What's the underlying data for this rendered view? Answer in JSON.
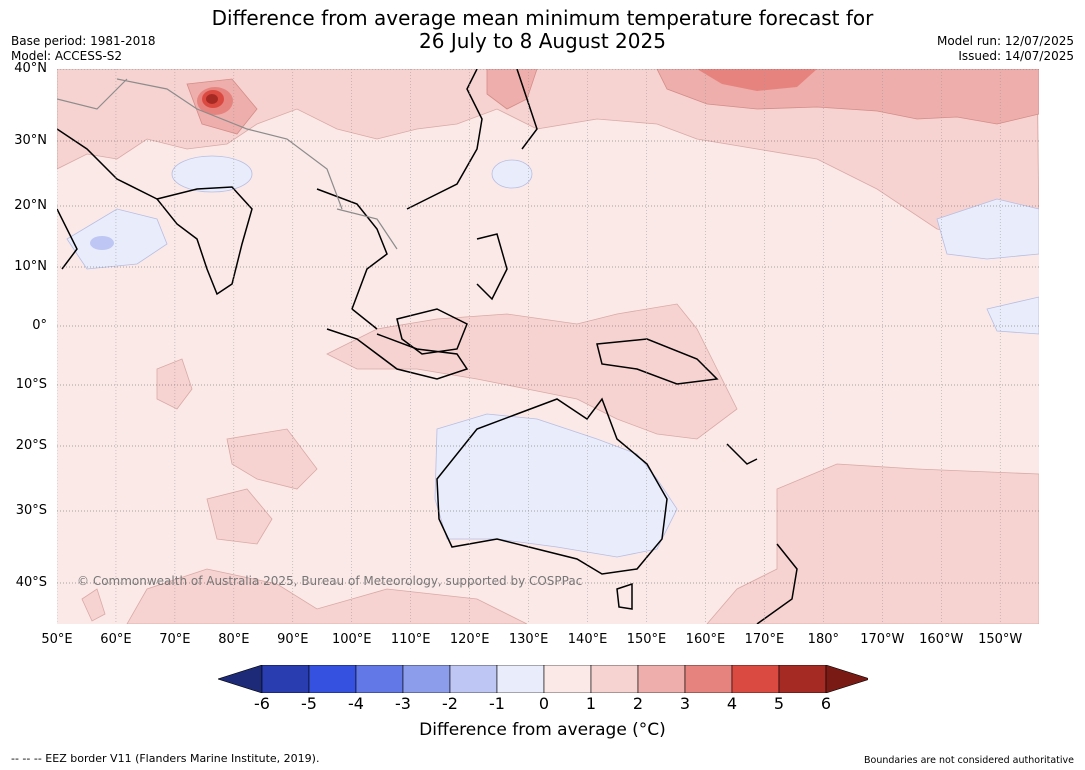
{
  "header": {
    "title_line1": "Difference from average mean minimum temperature forecast for",
    "title_line2": "26 July to 8 August 2025",
    "base_period": "Base period: 1981-2018",
    "model": "Model: ACCESS-S2",
    "model_run": "Model run: 12/07/2025",
    "issued": "Issued: 14/07/2025"
  },
  "map": {
    "lat_labels": [
      "40°N",
      "30°N",
      "20°N",
      "10°N",
      "0°",
      "10°S",
      "20°S",
      "30°S",
      "40°S"
    ],
    "lon_labels": [
      "50°E",
      "60°E",
      "70°E",
      "80°E",
      "90°E",
      "100°E",
      "110°E",
      "120°E",
      "130°E",
      "140°E",
      "150°E",
      "160°E",
      "170°E",
      "180°",
      "170°W",
      "160°W",
      "150°W"
    ],
    "copyright": "© Commonwealth of Australia 2025, Bureau of Meteorology, supported by COSPPac",
    "colors": {
      "ocean_base": "#fbe9e7",
      "land_outline": "#000000",
      "border": "#8c8c8c",
      "grid": "#555555"
    }
  },
  "colorbar": {
    "ticks": [
      "-6",
      "-5",
      "-4",
      "-3",
      "-2",
      "-1",
      "0",
      "1",
      "2",
      "3",
      "4",
      "5",
      "6"
    ],
    "colors": [
      "#1d2a78",
      "#2a3db0",
      "#3551e0",
      "#6178e6",
      "#8c9deb",
      "#bec6f3",
      "#e9ecfb",
      "#fbe9e7",
      "#f6d3d1",
      "#eeaeab",
      "#e7837e",
      "#db4a41",
      "#a62a24",
      "#7a1a14"
    ],
    "label": "Difference from average (°C)"
  },
  "footer": {
    "eez_note": "--  --  -- EEZ border V11 (Flanders Marine Institute, 2019).",
    "boundaries_note": "Boundaries are not considered authoritative"
  }
}
